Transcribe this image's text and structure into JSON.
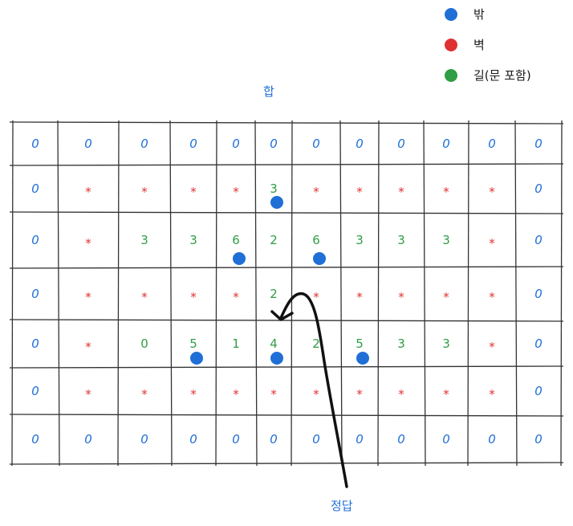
{
  "legend": [
    {
      "label": "밖",
      "color": "#1f6fd6",
      "icon": "blue-dot"
    },
    {
      "label": "벽",
      "color": "#e03131",
      "icon": "red-dot"
    },
    {
      "label": "길(문 포함)",
      "color": "#2f9e44",
      "icon": "green-dot"
    }
  ],
  "title": "합",
  "answer_label": "정답",
  "colors": {
    "outside": "#1f6fd6",
    "wall": "#e03131",
    "path": "#2f9e44",
    "grid": "#333333",
    "arrow": "#111111"
  },
  "grid": {
    "rows": 7,
    "cols": 12,
    "cells": [
      [
        "0",
        "0",
        "0",
        "0",
        "0",
        "0",
        "0",
        "0",
        "0",
        "0",
        "0",
        "0"
      ],
      [
        "0",
        "*",
        "*",
        "*",
        "*",
        "3",
        "*",
        "*",
        "*",
        "*",
        "*",
        "0"
      ],
      [
        "0",
        "*",
        "3",
        "3",
        "6",
        "2",
        "6",
        "3",
        "3",
        "3",
        "*",
        "0"
      ],
      [
        "0",
        "*",
        "*",
        "*",
        "*",
        "2",
        "*",
        "*",
        "*",
        "*",
        "*",
        "0"
      ],
      [
        "0",
        "*",
        "0",
        "5",
        "1",
        "4",
        "2",
        "5",
        "3",
        "3",
        "*",
        "0"
      ],
      [
        "0",
        "*",
        "*",
        "*",
        "*",
        "*",
        "*",
        "*",
        "*",
        "*",
        "*",
        "0"
      ],
      [
        "0",
        "0",
        "0",
        "0",
        "0",
        "0",
        "0",
        "0",
        "0",
        "0",
        "0",
        "0"
      ]
    ],
    "dots": [
      {
        "row": 1,
        "col": 5
      },
      {
        "row": 2,
        "col": 4
      },
      {
        "row": 2,
        "col": 6
      },
      {
        "row": 4,
        "col": 3
      },
      {
        "row": 4,
        "col": 5
      },
      {
        "row": 4,
        "col": 7
      }
    ]
  }
}
